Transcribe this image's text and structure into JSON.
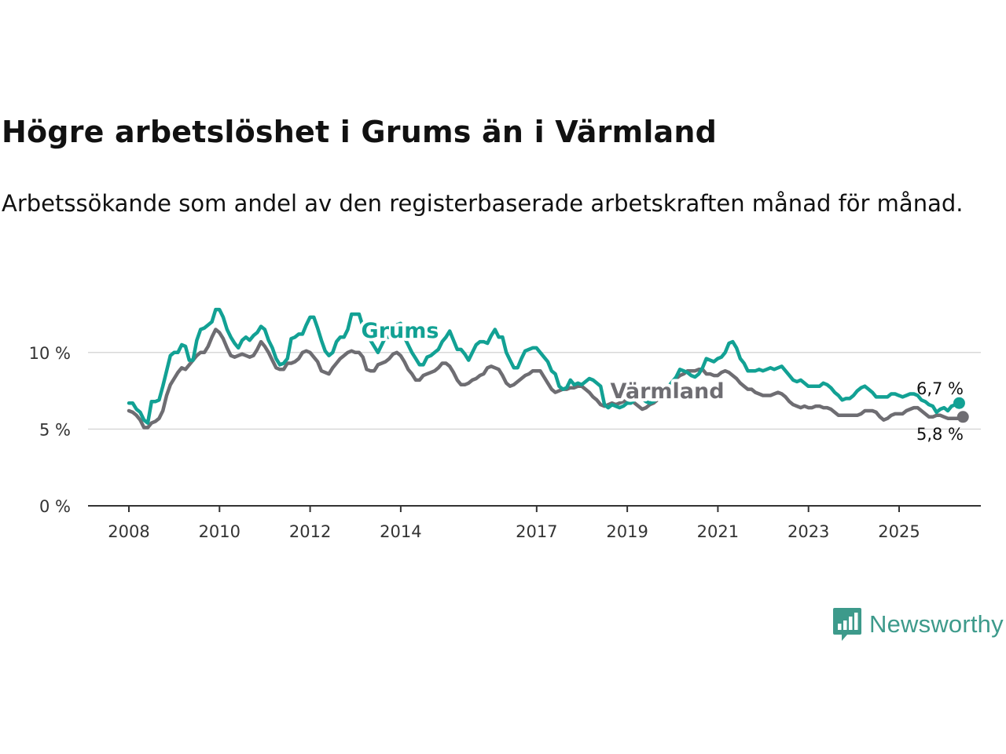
{
  "title": "Högre arbetslöshet i Grums än i Värmland",
  "subtitle": "Arbetssökande som andel av den registerbaserade arbetskraften månad för månad.",
  "brand": {
    "name": "Newsworthy",
    "icon": "bar-chart-speech-bubble-icon",
    "color": "#3d9a8b"
  },
  "chart_data": {
    "type": "line",
    "title": "Högre arbetslöshet i Grums än i Värmland",
    "xlabel": "",
    "ylabel": "",
    "x_ticks": [
      2008,
      2010,
      2012,
      2014,
      2017,
      2019,
      2021,
      2023,
      2025
    ],
    "x_tick_labels": [
      "2008",
      "2010",
      "2012",
      "2014",
      "2017",
      "2019",
      "2021",
      "2023",
      "2025"
    ],
    "y_ticks": [
      0,
      5,
      10
    ],
    "y_tick_labels": [
      "0 %",
      "5 %",
      "10 %"
    ],
    "xlim": [
      2007.2,
      2026.7
    ],
    "ylim": [
      0,
      12.5
    ],
    "grid": true,
    "series": [
      {
        "name": "Grums",
        "color": "#12a194",
        "end_label": "6,7 %",
        "x_start": 2008.0,
        "x_step": 0.0833,
        "values": [
          6.7,
          6.7,
          6.3,
          6.1,
          5.6,
          5.4,
          6.8,
          6.8,
          6.9,
          7.8,
          8.8,
          9.8,
          10.0,
          10.0,
          10.5,
          10.4,
          9.5,
          9.5,
          10.8,
          11.5,
          11.6,
          11.8,
          12.0,
          12.8,
          12.8,
          12.3,
          11.5,
          11.0,
          10.6,
          10.3,
          10.8,
          11.0,
          10.8,
          11.1,
          11.3,
          11.7,
          11.5,
          10.8,
          10.3,
          9.6,
          9.2,
          9.3,
          9.6,
          10.9,
          11.0,
          11.2,
          11.2,
          11.8,
          12.3,
          12.3,
          11.6,
          10.8,
          10.1,
          9.8,
          10.0,
          10.7,
          11.0,
          11.0,
          11.5,
          12.5,
          12.5,
          12.5,
          11.7,
          11.1,
          10.8,
          10.4,
          10.0,
          10.5,
          11.0,
          11.0,
          11.5,
          11.8,
          11.9,
          11.0,
          10.5,
          10.0,
          9.6,
          9.2,
          9.2,
          9.7,
          9.8,
          10.0,
          10.2,
          10.7,
          11.0,
          11.4,
          10.8,
          10.2,
          10.2,
          9.9,
          9.5,
          10.0,
          10.5,
          10.7,
          10.7,
          10.6,
          11.1,
          11.5,
          11.0,
          11.0,
          10.0,
          9.5,
          9.0,
          9.0,
          9.6,
          10.1,
          10.2,
          10.3,
          10.3,
          10.0,
          9.7,
          9.4,
          8.8,
          8.6,
          7.8,
          7.6,
          7.7,
          8.2,
          7.9,
          8.0,
          7.9,
          8.1,
          8.3,
          8.2,
          8.0,
          7.8,
          6.6,
          6.4,
          6.6,
          6.5,
          6.4,
          6.5,
          6.7,
          6.7,
          6.9,
          7.0,
          7.0,
          6.8,
          6.7,
          6.8,
          7.0,
          7.2,
          7.5,
          7.8,
          8.1,
          8.4,
          8.9,
          8.8,
          8.7,
          8.5,
          8.4,
          8.6,
          9.0,
          9.6,
          9.5,
          9.4,
          9.6,
          9.7,
          10.0,
          10.6,
          10.7,
          10.3,
          9.6,
          9.3,
          8.8,
          8.8,
          8.8,
          8.9,
          8.8,
          8.9,
          9.0,
          8.9,
          9.0,
          9.1,
          8.8,
          8.5,
          8.2,
          8.1,
          8.2,
          8.0,
          7.8,
          7.8,
          7.8,
          7.8,
          8.0,
          7.9,
          7.7,
          7.4,
          7.2,
          6.9,
          7.0,
          7.0,
          7.2,
          7.5,
          7.7,
          7.8,
          7.6,
          7.4,
          7.1,
          7.1,
          7.1,
          7.1,
          7.3,
          7.3,
          7.2,
          7.1,
          7.2,
          7.3,
          7.3,
          7.2,
          6.9,
          6.8,
          6.6,
          6.5,
          6.1,
          6.3,
          6.4,
          6.2,
          6.5,
          6.6,
          6.7
        ]
      },
      {
        "name": "Värmland",
        "color": "#6e6d72",
        "end_label": "5,8 %",
        "x_start": 2008.0,
        "x_step": 0.0833,
        "values": [
          6.2,
          6.1,
          5.9,
          5.6,
          5.1,
          5.1,
          5.4,
          5.5,
          5.7,
          6.2,
          7.2,
          7.9,
          8.3,
          8.7,
          9.0,
          8.9,
          9.2,
          9.5,
          9.8,
          10.0,
          10.0,
          10.4,
          11.0,
          11.5,
          11.3,
          10.9,
          10.3,
          9.8,
          9.7,
          9.8,
          9.9,
          9.8,
          9.7,
          9.8,
          10.2,
          10.7,
          10.4,
          10.0,
          9.5,
          9.0,
          8.9,
          8.9,
          9.3,
          9.3,
          9.4,
          9.6,
          10.0,
          10.1,
          10.0,
          9.7,
          9.4,
          8.8,
          8.7,
          8.6,
          9.0,
          9.3,
          9.6,
          9.8,
          10.0,
          10.1,
          10.0,
          10.0,
          9.7,
          8.9,
          8.8,
          8.8,
          9.2,
          9.3,
          9.4,
          9.6,
          9.9,
          10.0,
          9.8,
          9.4,
          8.9,
          8.6,
          8.2,
          8.2,
          8.5,
          8.6,
          8.7,
          8.8,
          9.0,
          9.3,
          9.3,
          9.1,
          8.7,
          8.2,
          7.9,
          7.9,
          8.0,
          8.2,
          8.3,
          8.5,
          8.6,
          9.0,
          9.1,
          9.0,
          8.9,
          8.5,
          8.0,
          7.8,
          7.9,
          8.1,
          8.3,
          8.5,
          8.6,
          8.8,
          8.8,
          8.8,
          8.4,
          8.0,
          7.6,
          7.4,
          7.5,
          7.6,
          7.6,
          7.7,
          7.7,
          7.8,
          7.8,
          7.6,
          7.4,
          7.1,
          6.9,
          6.6,
          6.5,
          6.6,
          6.7,
          6.6,
          6.7,
          6.8,
          6.9,
          6.9,
          6.7,
          6.5,
          6.3,
          6.4,
          6.6,
          6.7,
          6.9,
          7.1,
          7.4,
          7.7,
          8.0,
          8.3,
          8.5,
          8.6,
          8.8,
          8.8,
          8.8,
          8.9,
          8.9,
          8.6,
          8.6,
          8.5,
          8.5,
          8.7,
          8.8,
          8.7,
          8.5,
          8.3,
          8.0,
          7.8,
          7.6,
          7.6,
          7.4,
          7.3,
          7.2,
          7.2,
          7.2,
          7.3,
          7.4,
          7.3,
          7.1,
          6.8,
          6.6,
          6.5,
          6.4,
          6.5,
          6.4,
          6.4,
          6.5,
          6.5,
          6.4,
          6.4,
          6.3,
          6.1,
          5.9,
          5.9,
          5.9,
          5.9,
          5.9,
          5.9,
          6.0,
          6.2,
          6.2,
          6.2,
          6.1,
          5.8,
          5.6,
          5.7,
          5.9,
          6.0,
          6.0,
          6.0,
          6.2,
          6.3,
          6.4,
          6.4,
          6.2,
          6.0,
          5.8,
          5.8,
          5.9,
          5.9,
          5.8,
          5.7,
          5.7,
          5.7,
          5.7,
          5.8
        ]
      }
    ]
  }
}
